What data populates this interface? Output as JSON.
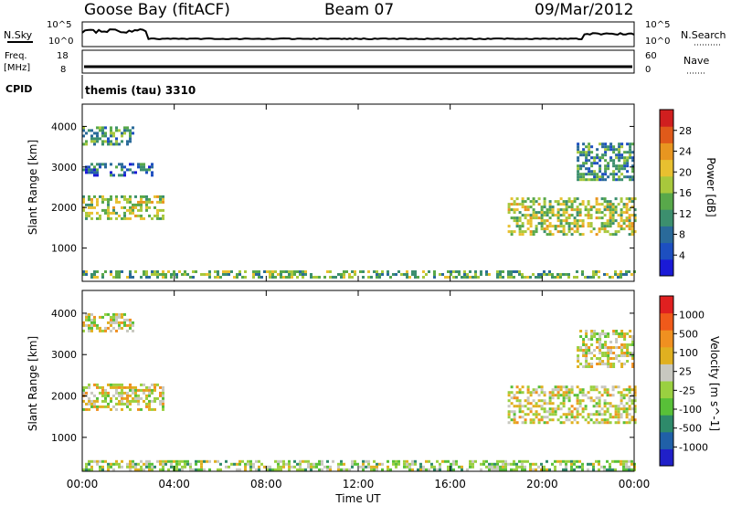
{
  "header": {
    "station": "Goose Bay (fitACF)",
    "beam": "Beam 07",
    "date": "09/Mar/2012"
  },
  "strips": {
    "nsky_label": "N.Sky",
    "nsearch_label": "N.Search",
    "noise_ticks": [
      "10^5",
      "10^0"
    ],
    "freq_label": "Freq.",
    "freq_unit": "[MHz]",
    "freq_ticks": [
      "18",
      "8"
    ],
    "nave_label": "Nave",
    "nave_ticks": [
      "60",
      "0"
    ],
    "cpid_label": "CPID",
    "cpid_value": "themis (tau) 3310"
  },
  "chart_data": [
    {
      "type": "heatmap",
      "name": "power",
      "xlabel": "",
      "ylabel": "Slant Range [km]",
      "x_ticks": [
        "00:00",
        "04:00",
        "08:00",
        "12:00",
        "16:00",
        "20:00",
        "00:00"
      ],
      "y_ticks": [
        1000,
        2000,
        3000,
        4000
      ],
      "ylim": [
        180,
        4550
      ],
      "colorbar": {
        "label": "Power [dB]",
        "ticks": [
          "4",
          "8",
          "12",
          "16",
          "20",
          "24",
          "28"
        ],
        "colors": [
          "#1a1ad6",
          "#1d4fc0",
          "#2a6a9a",
          "#3c8f6e",
          "#58a84a",
          "#a8c83c",
          "#e8c030",
          "#e89620",
          "#e05a1a",
          "#d01f1f"
        ]
      },
      "regions": [
        {
          "t0": 0.0,
          "t1": 2.2,
          "r0": 3550,
          "r1": 4000,
          "level": 3
        },
        {
          "t0": 0.0,
          "t1": 3.0,
          "r0": 2800,
          "r1": 3100,
          "level": 2
        },
        {
          "t0": 0.0,
          "t1": 3.5,
          "r0": 1700,
          "r1": 2300,
          "level": 5
        },
        {
          "t0": 0.0,
          "t1": 24.0,
          "r0": 250,
          "r1": 450,
          "level": 4
        },
        {
          "t0": 18.5,
          "t1": 24.0,
          "r0": 1350,
          "r1": 2250,
          "level": 5
        },
        {
          "t0": 21.5,
          "t1": 24.0,
          "r0": 2700,
          "r1": 3600,
          "level": 3
        }
      ]
    },
    {
      "type": "heatmap",
      "name": "velocity",
      "xlabel": "Time UT",
      "ylabel": "Slant Range [km]",
      "x_ticks": [
        "00:00",
        "04:00",
        "08:00",
        "12:00",
        "16:00",
        "20:00",
        "00:00"
      ],
      "y_ticks": [
        1000,
        2000,
        3000,
        4000
      ],
      "ylim": [
        180,
        4550
      ],
      "colorbar": {
        "label": "Velocity [m s^-1]",
        "ticks": [
          "1000",
          "500",
          "100",
          "25",
          "-25",
          "-100",
          "-500",
          "-1000"
        ],
        "colors": [
          "#2020c8",
          "#2060a8",
          "#2e8a6a",
          "#58c038",
          "#9ad040",
          "#c8c8c0",
          "#e0b020",
          "#f09020",
          "#f05a1a",
          "#e02020"
        ]
      },
      "regions": [
        {
          "t0": 0.0,
          "t1": 2.2,
          "r0": 3550,
          "r1": 4000,
          "level": 5
        },
        {
          "t0": 0.0,
          "t1": 3.5,
          "r0": 1700,
          "r1": 2300,
          "level": 5
        },
        {
          "t0": 0.0,
          "t1": 24.0,
          "r0": 250,
          "r1": 450,
          "level": 4
        },
        {
          "t0": 18.5,
          "t1": 24.0,
          "r0": 1350,
          "r1": 2250,
          "level": 5
        },
        {
          "t0": 21.5,
          "t1": 24.0,
          "r0": 2700,
          "r1": 3600,
          "level": 5
        }
      ]
    }
  ]
}
